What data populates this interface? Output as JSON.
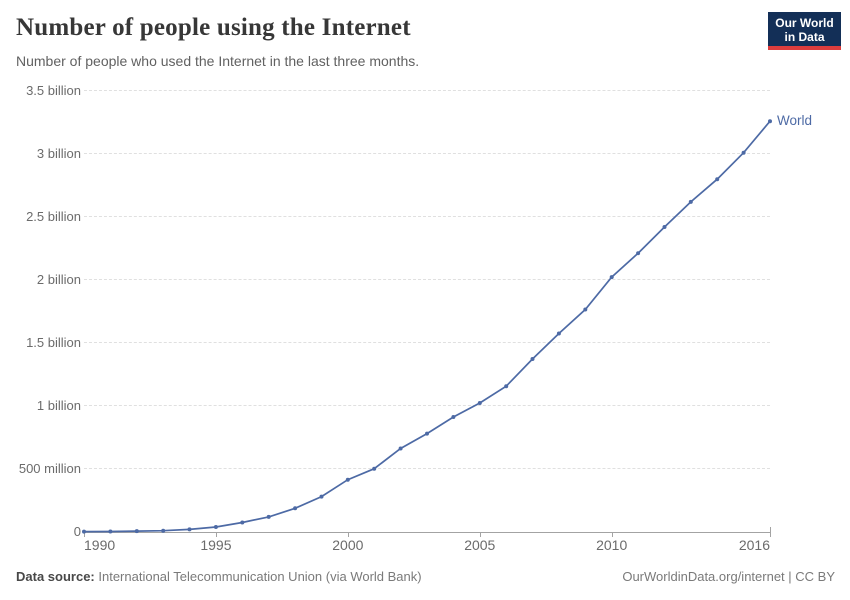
{
  "header": {
    "title": "Number of people using the Internet",
    "subtitle": "Number of people who used the Internet in the last three months.",
    "logo": {
      "line1": "Our World",
      "line2": "in Data",
      "background_color": "#132f57",
      "accent_color": "#dd3d3d"
    }
  },
  "chart_data": {
    "type": "line",
    "title": "Number of people using the Internet",
    "subtitle": "Number of people who used the Internet in the last three months.",
    "unit": "billions of people",
    "xlim": [
      1990,
      2016
    ],
    "ylim": [
      0,
      3.5
    ],
    "grid": "horizontal-dashed",
    "legend_position": "end-of-line-label",
    "x_ticks": [
      1990,
      1995,
      2000,
      2005,
      2010,
      2016
    ],
    "y_ticks": [
      {
        "value": 0,
        "label": "0"
      },
      {
        "value": 0.5,
        "label": "500 million"
      },
      {
        "value": 1,
        "label": "1 billion"
      },
      {
        "value": 1.5,
        "label": "1.5 billion"
      },
      {
        "value": 2,
        "label": "2 billion"
      },
      {
        "value": 2.5,
        "label": "2.5 billion"
      },
      {
        "value": 3,
        "label": "3 billion"
      },
      {
        "value": 3.5,
        "label": "3.5 billion"
      }
    ],
    "series": [
      {
        "name": "World",
        "color": "#4d6aa5",
        "x": [
          1990,
          1991,
          1992,
          1993,
          1994,
          1995,
          1996,
          1997,
          1998,
          1999,
          2000,
          2001,
          2002,
          2003,
          2004,
          2005,
          2006,
          2007,
          2008,
          2009,
          2010,
          2011,
          2012,
          2013,
          2014,
          2015,
          2016
        ],
        "values": [
          0.003,
          0.004,
          0.007,
          0.01,
          0.021,
          0.04,
          0.075,
          0.12,
          0.188,
          0.281,
          0.415,
          0.502,
          0.663,
          0.781,
          0.913,
          1.024,
          1.157,
          1.373,
          1.575,
          1.766,
          2.023,
          2.213,
          2.421,
          2.62,
          2.8,
          3.01,
          3.26
        ]
      }
    ]
  },
  "footer": {
    "source_label": "Data source:",
    "source_text": " International Telecommunication Union (via World Bank)",
    "attribution": "OurWorldinData.org/internet | CC BY"
  },
  "colors": {
    "line": "#4d6aa5",
    "gridline": "#e0e0e0",
    "axis": "#a3a3a3",
    "title_text": "#373737",
    "subtitle_text": "#616161",
    "tick_text": "#6b6b6b"
  }
}
